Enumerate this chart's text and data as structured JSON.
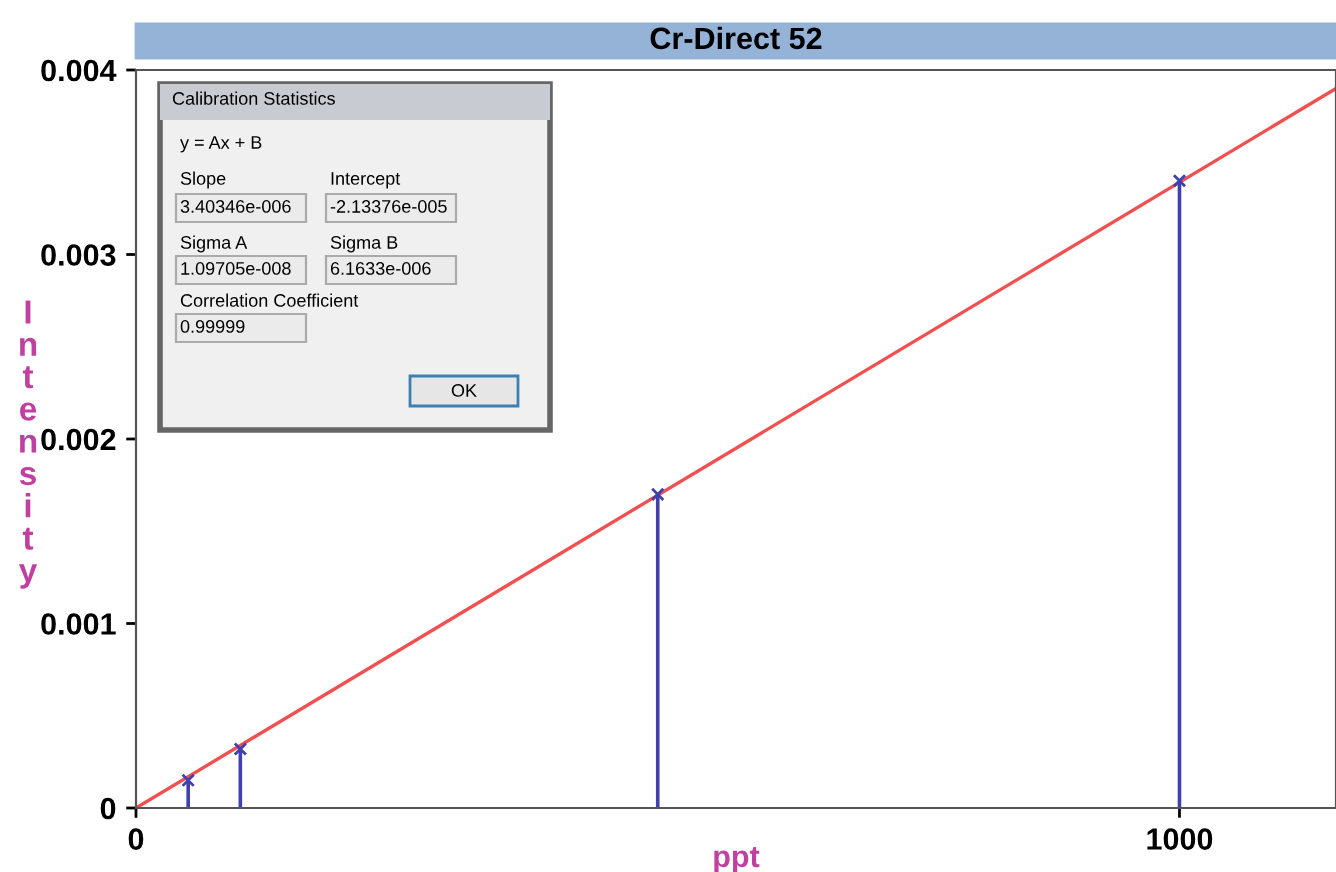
{
  "chart_data": {
    "type": "line",
    "title": "Cr-Direct 52",
    "xlabel": "ppt",
    "ylabel": "Intensity",
    "xlim": [
      0,
      1150
    ],
    "xticks": [
      0,
      1000
    ],
    "ylim": [
      0,
      0.004
    ],
    "yticks": [
      0,
      0.001,
      0.002,
      0.003,
      0.004
    ],
    "grid": false,
    "legend": false,
    "series": [
      {
        "type": "line",
        "color": "#f05050",
        "x": [
          0,
          1150
        ],
        "values": [
          0,
          0.0039
        ]
      },
      {
        "type": "lollipop",
        "color": "#4040b0",
        "marker": "cross",
        "x": [
          50,
          100,
          500,
          1000
        ],
        "values": [
          0.00015,
          0.00032,
          0.0017,
          0.0034
        ]
      }
    ],
    "annotations": [
      "Calibration Statistics",
      "y = Ax + B",
      "Slope",
      "3.40346e-006",
      "Intercept",
      "-2.13376e-005",
      "Sigma A",
      "1.09705e-008",
      "Sigma B",
      "6.1633e-006",
      "Correlation Coefficient",
      "0.99999",
      "OK"
    ]
  }
}
